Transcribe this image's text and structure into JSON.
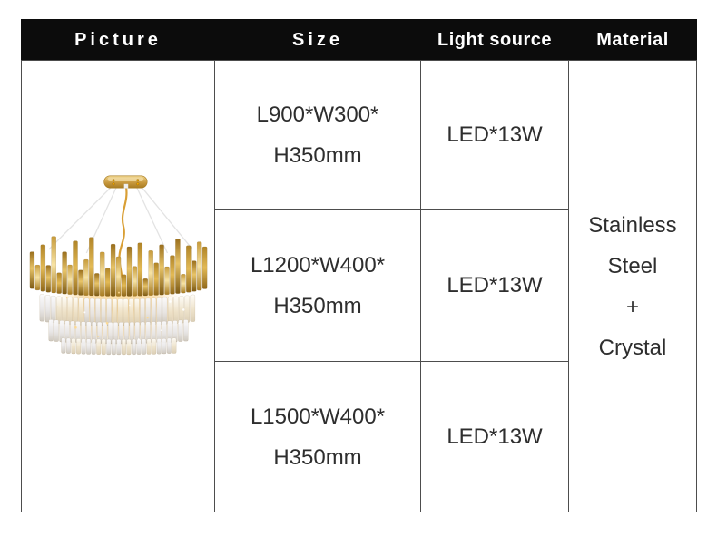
{
  "header": {
    "columns": [
      {
        "label": "Picture"
      },
      {
        "label": "Size"
      },
      {
        "label": "Light source"
      },
      {
        "label": "Material"
      }
    ]
  },
  "rows": [
    {
      "size": [
        "L900*W300*",
        "H350mm"
      ],
      "light_source": "LED*13W"
    },
    {
      "size": [
        "L1200*W400*",
        "H350mm"
      ],
      "light_source": "LED*13W"
    },
    {
      "size": [
        "L1500*W400*",
        "H350mm"
      ],
      "light_source": "LED*13W"
    }
  ],
  "material": {
    "lines": [
      "Stainless",
      "Steel",
      "+",
      "Crystal"
    ]
  },
  "colors": {
    "header_bg": "#0c0c0c",
    "header_text": "#ffffff",
    "body_text": "#2e2e2e",
    "border": "#4d4d4d",
    "gold_accent": "#c99a3f",
    "crystal_tint": "#efe6d2"
  }
}
